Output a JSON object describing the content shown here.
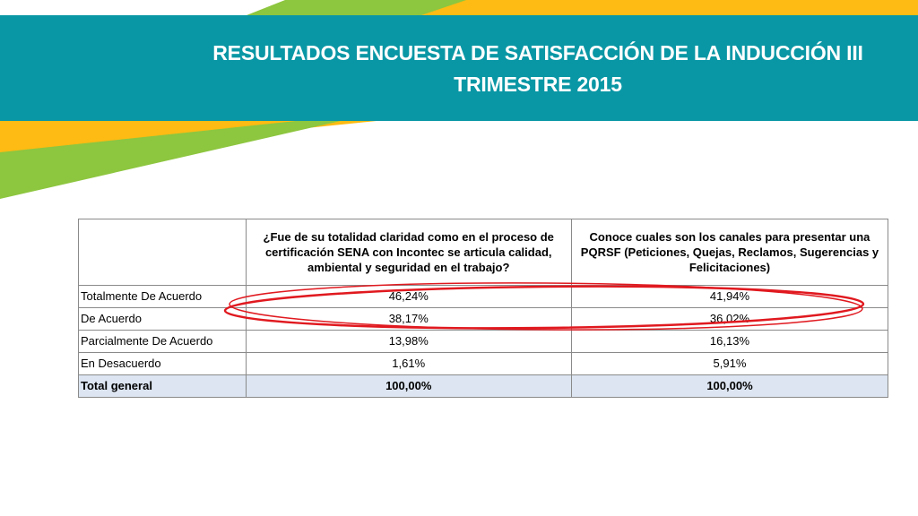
{
  "slide": {
    "title": "RESULTADOS ENCUESTA DE SATISFACCIÓN DE LA INDUCCIÓN III TRIMESTRE 2015",
    "colors": {
      "band": "#0a97a5",
      "yellow": "#fdbb13",
      "green": "#8dc63f",
      "total_row": "#dce5f1",
      "ellipse": "#e0191f"
    }
  },
  "table": {
    "headers": [
      "",
      "¿Fue de su totalidad claridad como en el proceso de certificación SENA con Incontec se articula calidad, ambiental y seguridad en el trabajo?",
      "Conoce cuales son los canales para presentar una PQRSF (Peticiones, Quejas, Reclamos, Sugerencias y Felicitaciones)"
    ],
    "rows": [
      {
        "label": "Totalmente De Acuerdo",
        "q1": "46,24%",
        "q2": "41,94%"
      },
      {
        "label": "De Acuerdo",
        "q1": "38,17%",
        "q2": "36,02%"
      },
      {
        "label": "Parcialmente De Acuerdo",
        "q1": "13,98%",
        "q2": "16,13%"
      },
      {
        "label": "En Desacuerdo",
        "q1": "1,61%",
        "q2": "5,91%"
      },
      {
        "label": "Total general",
        "q1": "100,00%",
        "q2": "100,00%"
      }
    ]
  }
}
